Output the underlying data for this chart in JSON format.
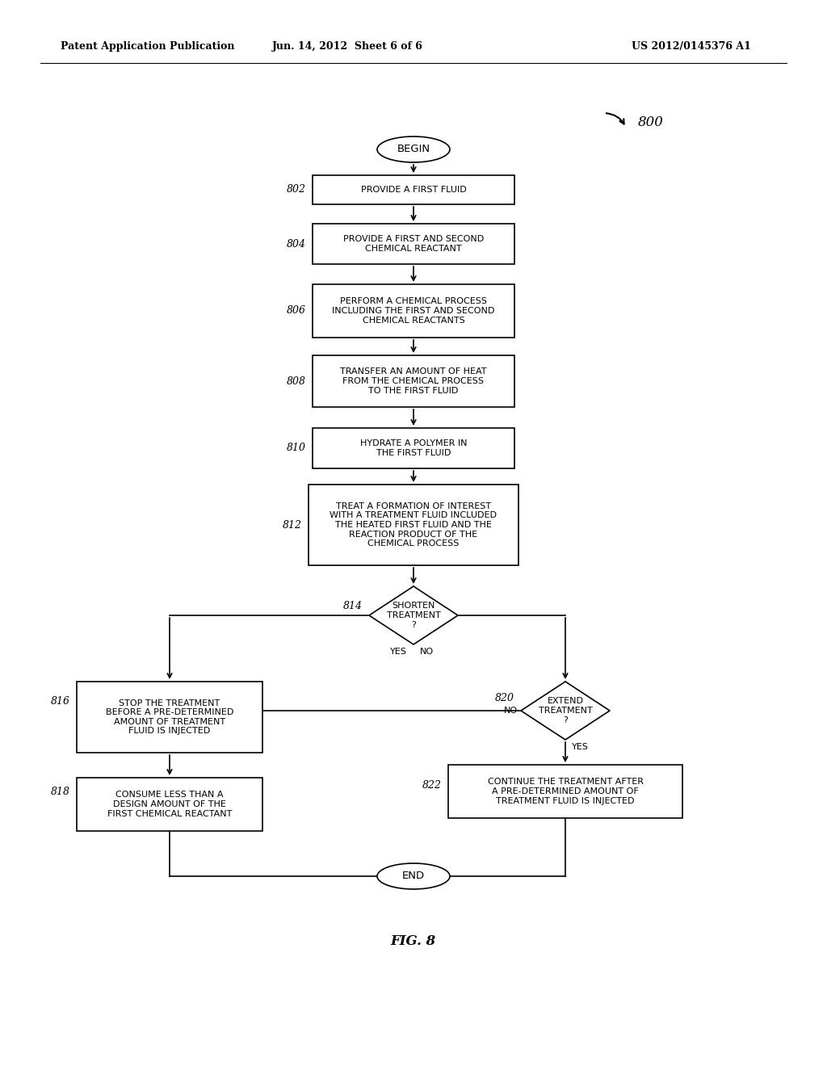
{
  "bg_color": "#ffffff",
  "header_left": "Patent Application Publication",
  "header_mid": "Jun. 14, 2012  Sheet 6 of 6",
  "header_right": "US 2012/0145376 A1",
  "fig_label": "FIG. 8",
  "diagram_label": "800"
}
